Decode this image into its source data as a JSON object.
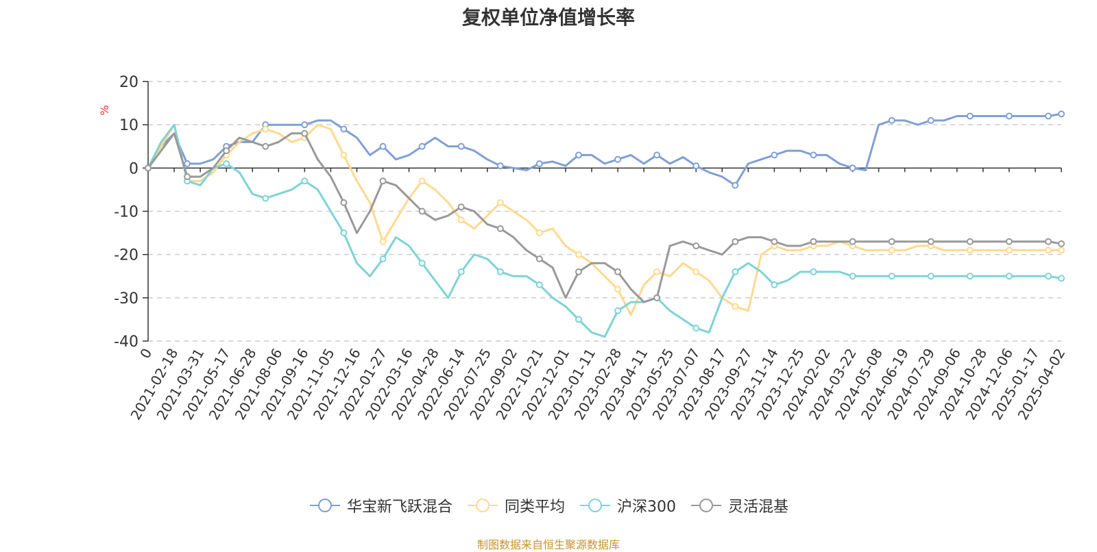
{
  "chart_data": {
    "type": "line",
    "title": "复权单位净值增长率",
    "ylabel": "%",
    "ylim": [
      -40,
      20
    ],
    "yticks": [
      20,
      10,
      0,
      -10,
      -20,
      -30,
      -40
    ],
    "grid": true,
    "legend_position": "bottom-center",
    "x_tick_labels": [
      "0",
      "2021-02-18",
      "2021-03-31",
      "2021-05-17",
      "2021-06-28",
      "2021-08-06",
      "2021-09-16",
      "2021-11-05",
      "2021-12-16",
      "2022-01-27",
      "2022-03-16",
      "2022-04-28",
      "2022-06-14",
      "2022-07-25",
      "2022-09-02",
      "2022-10-21",
      "2022-12-01",
      "2023-01-11",
      "2023-02-28",
      "2023-04-11",
      "2023-05-25",
      "2023-07-07",
      "2023-08-17",
      "2023-09-27",
      "2023-11-14",
      "2023-12-25",
      "2024-02-02",
      "2024-03-22",
      "2024-05-08",
      "2024-06-19",
      "2024-07-29",
      "2024-09-06",
      "2024-10-28",
      "2024-12-06",
      "2025-01-17",
      "2025-04-02"
    ],
    "x": [
      0,
      1,
      2,
      3,
      4,
      5,
      6,
      7,
      8,
      9,
      10,
      11,
      12,
      13,
      14,
      15,
      16,
      17,
      18,
      19,
      20,
      21,
      22,
      23,
      24,
      25,
      26,
      27,
      28,
      29,
      30,
      31,
      32,
      33,
      34,
      35,
      36,
      37,
      38,
      39,
      40,
      41,
      42,
      43,
      44,
      45,
      46,
      47,
      48,
      49,
      50,
      51,
      52,
      53,
      54,
      55,
      56,
      57,
      58,
      59,
      60,
      61,
      62,
      63,
      64,
      65,
      66,
      67,
      68,
      69,
      70
    ],
    "series": [
      {
        "name": "华宝新飞跃混合",
        "color": "#7f9fd6",
        "values": [
          0,
          5,
          8,
          1,
          1,
          2,
          5,
          6,
          6,
          10,
          10,
          10,
          10,
          11,
          11,
          9,
          7,
          3,
          5,
          2,
          3,
          5,
          7,
          5,
          5,
          4,
          2,
          0.5,
          0,
          -0.5,
          1,
          1.5,
          0.5,
          3,
          3,
          1,
          2,
          3,
          1,
          3,
          1,
          2.5,
          0.5,
          -1,
          -2,
          -4,
          1,
          2,
          3,
          4,
          4,
          3,
          3,
          1,
          0,
          -0.5,
          10,
          11,
          11,
          10,
          11,
          11,
          12,
          12,
          12,
          12,
          12,
          12,
          12,
          12,
          12.5
        ]
      },
      {
        "name": "同类平均",
        "color": "#ffd98e",
        "values": [
          0,
          5,
          10,
          -3,
          -3,
          -1,
          3,
          6,
          8,
          9,
          8,
          6,
          7,
          10,
          9,
          3,
          -3,
          -8,
          -17,
          -12,
          -7,
          -3,
          -5,
          -8,
          -12,
          -14,
          -11,
          -8,
          -10,
          -12,
          -15,
          -14,
          -18,
          -20,
          -22,
          -25,
          -28,
          -34,
          -27,
          -24,
          -25,
          -22,
          -24,
          -26,
          -30,
          -32,
          -33,
          -20,
          -18,
          -19,
          -19,
          -18,
          -18,
          -17,
          -18,
          -19,
          -19,
          -19,
          -19,
          -18,
          -18,
          -19,
          -19,
          -19,
          -19,
          -19,
          -19,
          -19,
          -19,
          -19,
          -19
        ]
      },
      {
        "name": "沪深300",
        "color": "#7dd3d6",
        "values": [
          0,
          6,
          10,
          -3,
          -4,
          0,
          1,
          -1,
          -6,
          -7,
          -6,
          -5,
          -3,
          -5,
          -10,
          -15,
          -22,
          -25,
          -21,
          -16,
          -18,
          -22,
          -26,
          -30,
          -24,
          -20,
          -21,
          -24,
          -25,
          -25,
          -27,
          -30,
          -32,
          -35,
          -38,
          -39,
          -33,
          -31,
          -31,
          -30,
          -33,
          -35,
          -37,
          -38,
          -30,
          -24,
          -22,
          -24,
          -27,
          -26,
          -24,
          -24,
          -24,
          -24,
          -25,
          -25,
          -25,
          -25,
          -25,
          -25,
          -25,
          -25,
          -25,
          -25,
          -25,
          -25,
          -25,
          -25,
          -25,
          -25,
          -25.5
        ]
      },
      {
        "name": "灵活混基",
        "color": "#999999",
        "values": [
          0,
          4,
          8,
          -2,
          -2,
          0,
          4,
          7,
          6,
          5,
          6,
          8,
          8,
          2,
          -2,
          -8,
          -15,
          -10,
          -3,
          -4,
          -7,
          -10,
          -12,
          -11,
          -9,
          -10,
          -13,
          -14,
          -16,
          -19,
          -21,
          -23,
          -30,
          -24,
          -22,
          -22,
          -24,
          -28,
          -31,
          -30,
          -18,
          -17,
          -18,
          -19,
          -20,
          -17,
          -16,
          -16,
          -17,
          -18,
          -18,
          -17,
          -17,
          -17,
          -17,
          -17,
          -17,
          -17,
          -17,
          -17,
          -17,
          -17,
          -17,
          -17,
          -17,
          -17,
          -17,
          -17,
          -17,
          -17,
          -17.5
        ]
      }
    ]
  },
  "source_note": "制图数据来自恒生聚源数据库"
}
